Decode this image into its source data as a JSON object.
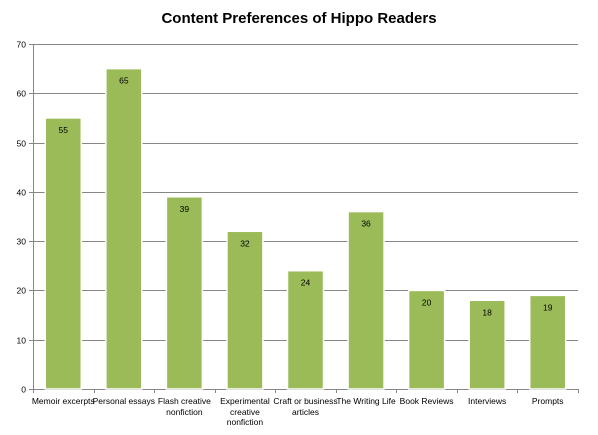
{
  "chart_data": {
    "type": "bar",
    "title": "Content Preferences of Hippo Readers",
    "xlabel": "",
    "ylabel": "",
    "categories": [
      "Memoir excerpts",
      "Personal essays",
      "Flash creative nonfiction",
      "Experimental creative nonfiction",
      "Craft or business articles",
      "The Writing Life",
      "Book Reviews",
      "Interviews",
      "Prompts"
    ],
    "values": [
      55,
      65,
      39,
      32,
      24,
      36,
      20,
      18,
      19
    ],
    "data_labels": [
      "55",
      "65",
      "39",
      "32",
      "24",
      "36",
      "20",
      "18",
      "19"
    ],
    "ylim": [
      0,
      70
    ],
    "yticks": [
      "0",
      "10",
      "20",
      "30",
      "40",
      "50",
      "60",
      "70"
    ],
    "grid": true,
    "legend": "none",
    "bar_color": "#9bbb59",
    "bar_edge_color": "#ffffff"
  }
}
